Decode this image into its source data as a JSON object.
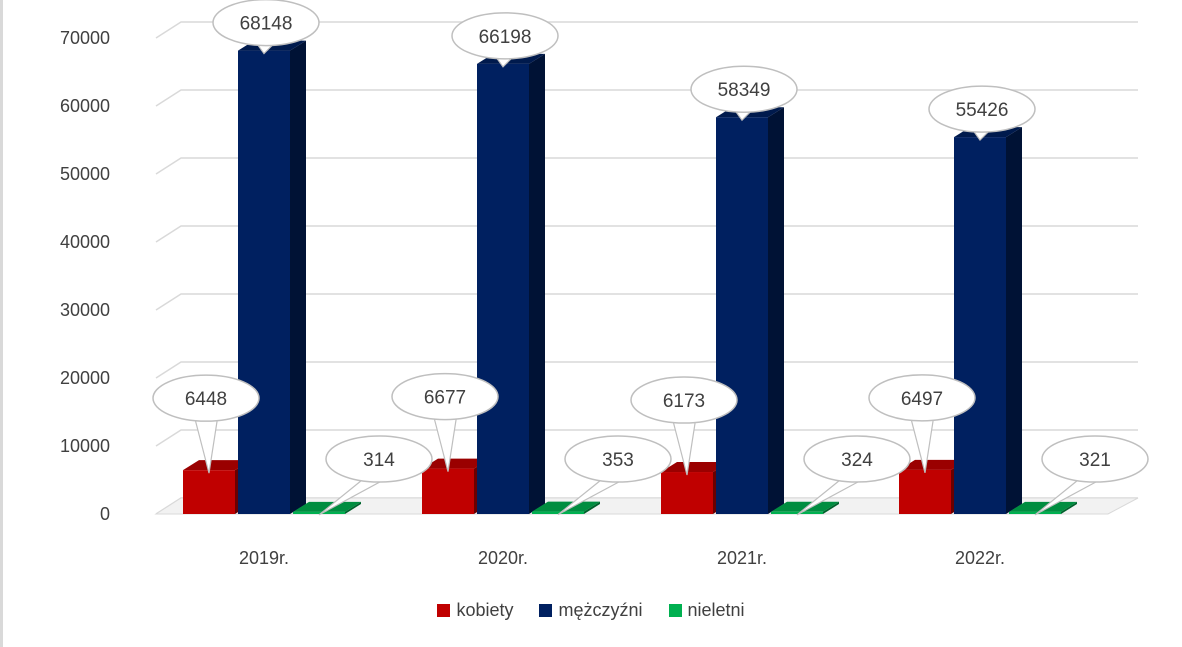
{
  "chart_data": {
    "type": "bar",
    "categories": [
      "2019r.",
      "2020r.",
      "2021r.",
      "2022r."
    ],
    "series": [
      {
        "name": "kobiety",
        "color": "#c00000",
        "values": [
          6448,
          6677,
          6173,
          6497
        ]
      },
      {
        "name": "mężczyźni",
        "color": "#002060",
        "values": [
          68148,
          66198,
          58349,
          55426
        ]
      },
      {
        "name": "nieletni",
        "color": "#00b050",
        "values": [
          314,
          353,
          324,
          321
        ]
      }
    ],
    "yticks": [
      "0",
      "10000",
      "20000",
      "30000",
      "40000",
      "50000",
      "60000",
      "70000"
    ],
    "ylim": [
      0,
      70000
    ],
    "grid": true,
    "legend_position": "bottom",
    "data_labels": "callouts"
  }
}
